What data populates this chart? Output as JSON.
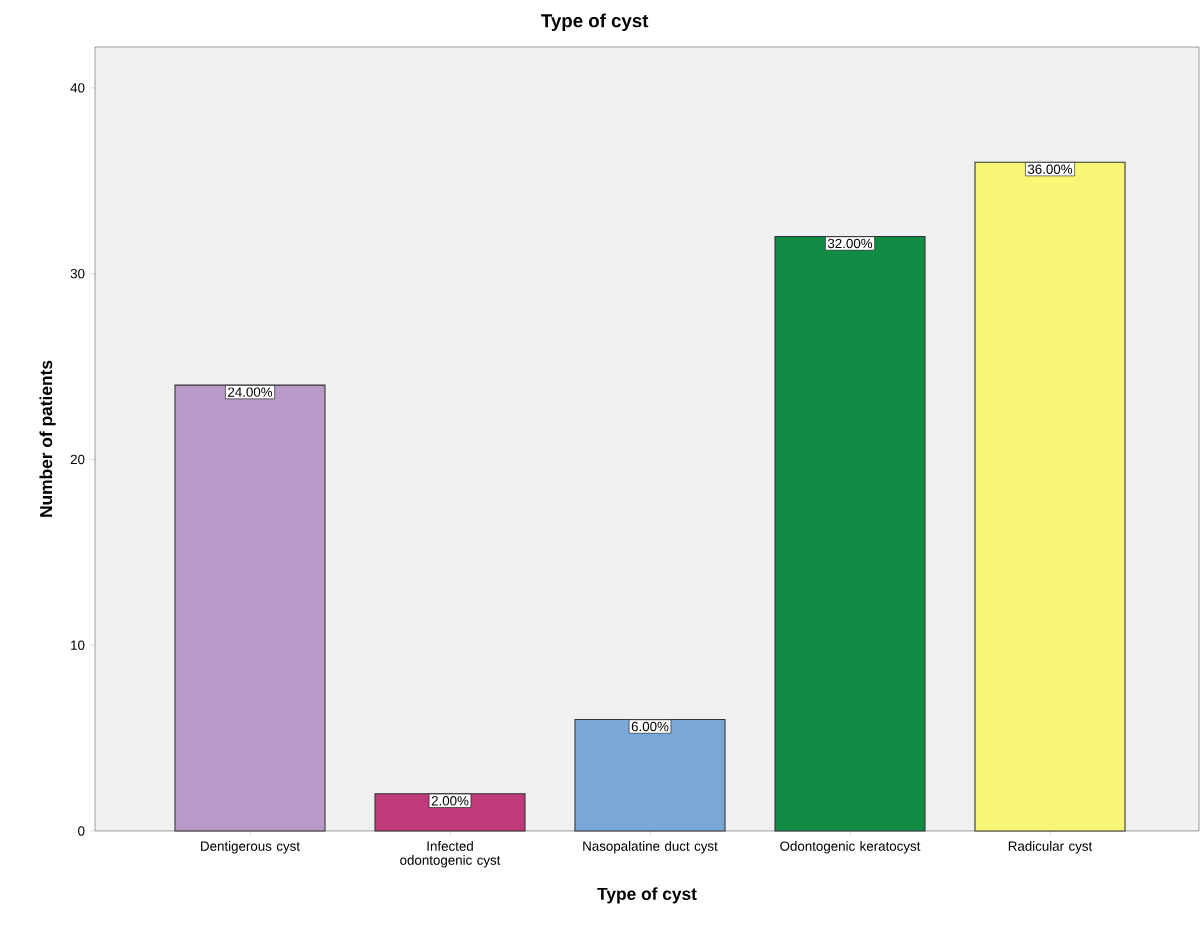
{
  "chart_data": {
    "type": "bar",
    "title": "Type of cyst",
    "xlabel": "Type of cyst",
    "ylabel": "Number of patients",
    "categories": [
      "Dentigerous cyst",
      "Infected odontogenic cyst",
      "Nasopalatine duct cyst",
      "Odontogenic keratocyst",
      "Radicular cyst"
    ],
    "values": [
      24,
      2,
      6,
      32,
      36
    ],
    "colors": [
      "#b79ac8",
      "#be3a7a",
      "#7aa8d6",
      "#118b44",
      "#f8f674"
    ],
    "value_labels": [
      "24.00%",
      "2.00%",
      "6.00%",
      "32.00%",
      "36.00%"
    ],
    "ylim": [
      0,
      42.2
    ],
    "yticks": [
      0,
      10,
      20,
      30,
      40
    ]
  }
}
